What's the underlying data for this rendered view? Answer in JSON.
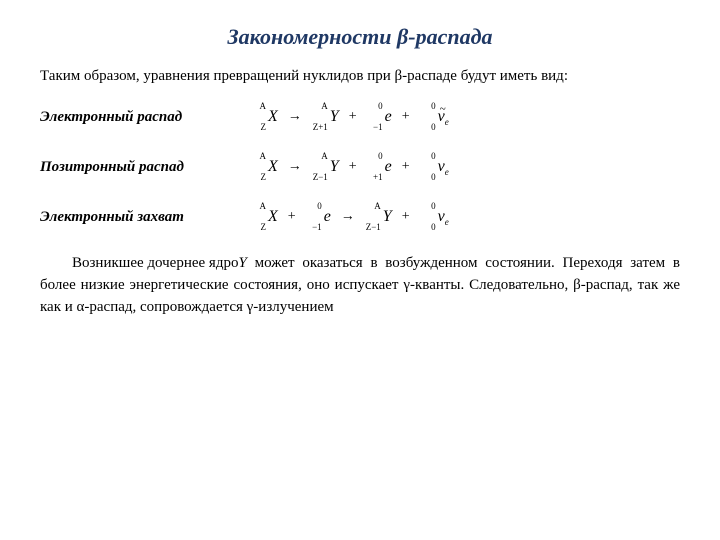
{
  "title": "Закономерности β-распада",
  "intro": "Таким образом, уравнения превращений нуклидов при β-распаде будут иметь вид:",
  "rows": {
    "electron_decay": {
      "label": "Электронный распад"
    },
    "positron_decay": {
      "label": "Позитронный распад"
    },
    "electron_capture": {
      "label": "Электронный захват"
    }
  },
  "formulas": {
    "electron_decay": {
      "X": {
        "A": "A",
        "Z": "Z",
        "sym": "X"
      },
      "Y": {
        "A": "A",
        "Z": "Z+1",
        "sym": "Y"
      },
      "e": {
        "A": "0",
        "Z": "−1",
        "sym": "e"
      },
      "nu": {
        "A": "0",
        "Z": "0",
        "sym": "ν",
        "sub_e": "e",
        "anti": true
      }
    },
    "positron_decay": {
      "X": {
        "A": "A",
        "Z": "Z",
        "sym": "X"
      },
      "Y": {
        "A": "A",
        "Z": "Z−1",
        "sym": "Y"
      },
      "e": {
        "A": "0",
        "Z": "+1",
        "sym": "e"
      },
      "nu": {
        "A": "0",
        "Z": "0",
        "sym": "ν",
        "sub_e": "e",
        "anti": false
      }
    },
    "electron_capture": {
      "X": {
        "A": "A",
        "Z": "Z",
        "sym": "X"
      },
      "e": {
        "A": "0",
        "Z": "−1",
        "sym": "e"
      },
      "Y": {
        "A": "A",
        "Z": "Z−1",
        "sym": "Y"
      },
      "nu": {
        "A": "0",
        "Z": "0",
        "sym": "ν",
        "sub_e": "e",
        "anti": false
      }
    }
  },
  "paragraph": {
    "p1a": "Возникшее дочернее ядро ",
    "p1y": "Y",
    "p1b": " может оказаться в возбужденном состоянии. Переходя затем в более низкие энергетические состояния, оно испускает γ-кванты. Следовательно, β-распад, так же как и α-распад, сопровождается γ-излучением"
  },
  "colors": {
    "title": "#1f3864",
    "text": "#000000",
    "background": "#ffffff"
  },
  "fonts": {
    "family": "Times New Roman",
    "title_size_pt": 16,
    "body_size_pt": 11,
    "label_size_pt": 11
  }
}
